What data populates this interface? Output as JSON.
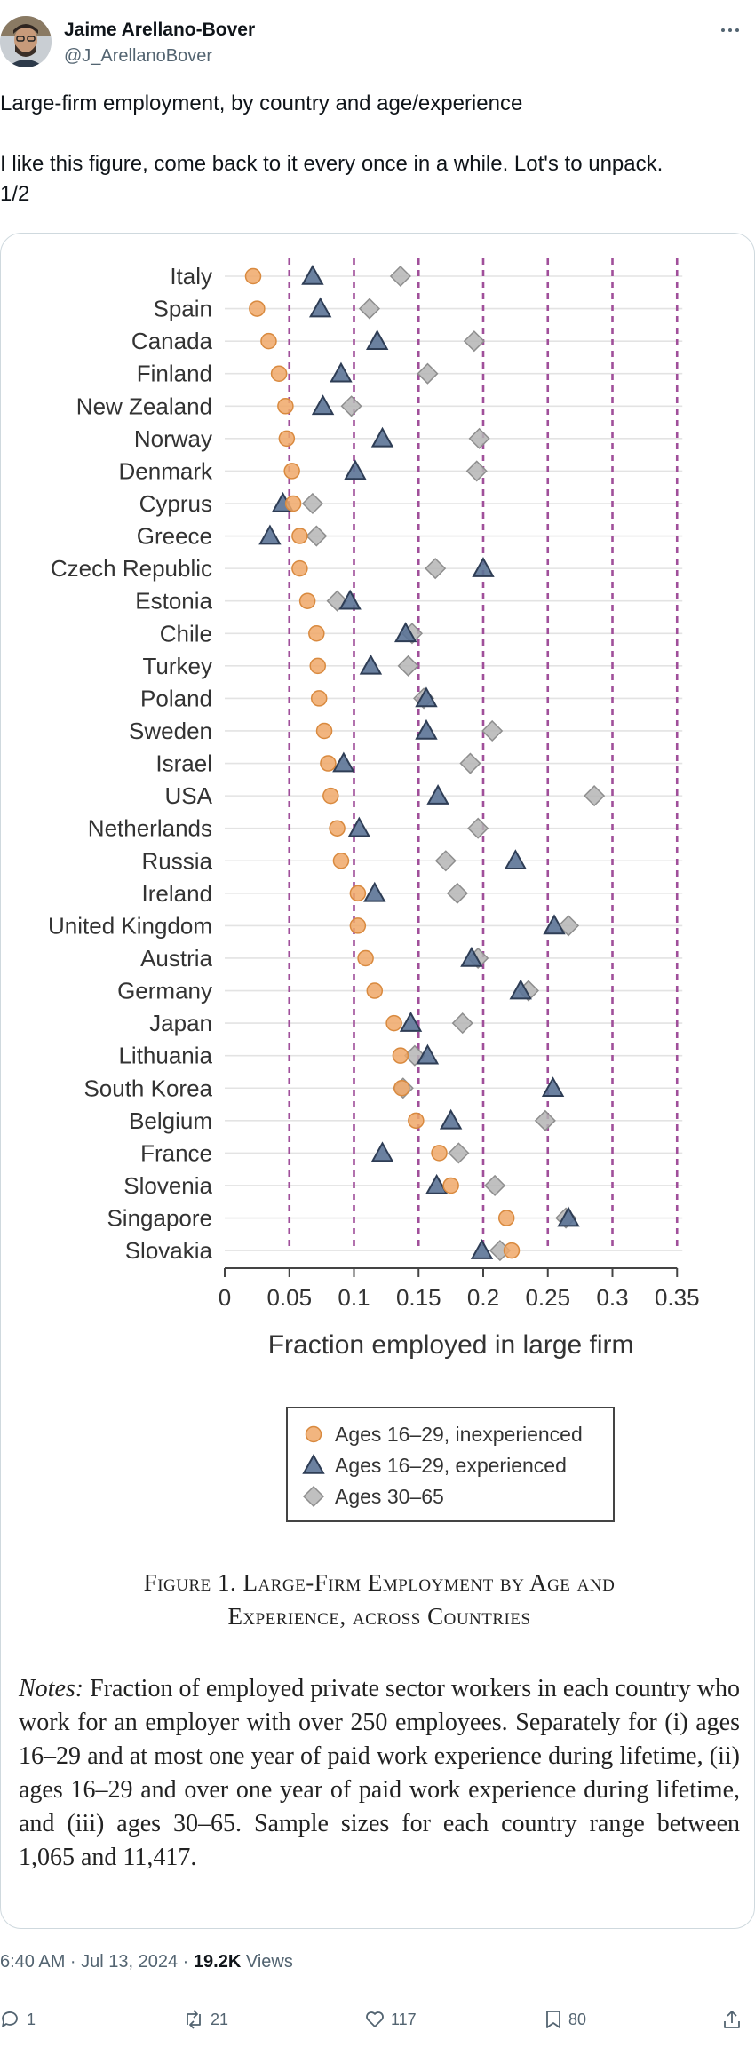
{
  "author": {
    "name": "Jaime Arellano-Bover",
    "handle": "@J_ArellanoBover"
  },
  "tweet": {
    "line1": "Large-firm employment, by country and age/experience",
    "line2": "I like this figure, come back to it every once in a while. Lot's to unpack.",
    "line3": "1/2"
  },
  "figure": {
    "title_line1": "Figure 1. Large-Firm Employment by Age and",
    "title_line2": "Experience, across Countries",
    "notes_label": "Notes:",
    "notes_text": " Fraction of employed private sector workers in each country who work for an employer with over 250 employees. Separately for (i) ages 16–29 and at most one year of paid work experience during lifetime, (ii) ages 16–29 and over one year of paid work experience during lifetime, and (iii) ages 30–65. Sample sizes for each country range between 1,065 and 11,417."
  },
  "chart_data": {
    "type": "scatter",
    "xlabel": "Fraction employed in large firm",
    "xlim": [
      0,
      0.35
    ],
    "xticks": [
      "0",
      "0.05",
      "0.1",
      "0.15",
      "0.2",
      "0.25",
      "0.3",
      "0.35"
    ],
    "legend_position": "bottom-center",
    "categories": [
      "Italy",
      "Spain",
      "Canada",
      "Finland",
      "New Zealand",
      "Norway",
      "Denmark",
      "Cyprus",
      "Greece",
      "Czech Republic",
      "Estonia",
      "Chile",
      "Turkey",
      "Poland",
      "Sweden",
      "Israel",
      "USA",
      "Netherlands",
      "Russia",
      "Ireland",
      "United Kingdom",
      "Austria",
      "Germany",
      "Japan",
      "Lithuania",
      "South Korea",
      "Belgium",
      "France",
      "Slovenia",
      "Singapore",
      "Slovakia"
    ],
    "series": [
      {
        "name": "Ages 16–29, inexperienced",
        "marker": "circle",
        "color": "#f0a868",
        "values": [
          0.022,
          0.025,
          0.034,
          0.042,
          0.047,
          0.048,
          0.052,
          0.053,
          0.058,
          0.058,
          0.064,
          0.071,
          0.072,
          0.073,
          0.077,
          0.08,
          0.082,
          0.087,
          0.09,
          0.103,
          0.103,
          0.109,
          0.116,
          0.131,
          0.136,
          0.137,
          0.148,
          0.166,
          0.175,
          0.218,
          0.222
        ]
      },
      {
        "name": "Ages 16–29, experienced",
        "marker": "triangle",
        "color": "#5b7396",
        "values": [
          0.068,
          0.074,
          0.118,
          0.09,
          0.076,
          0.122,
          0.101,
          0.045,
          0.035,
          0.2,
          0.097,
          0.14,
          0.113,
          0.156,
          0.156,
          0.092,
          0.165,
          0.104,
          0.225,
          0.116,
          0.255,
          0.191,
          0.229,
          0.144,
          0.157,
          0.254,
          0.175,
          0.122,
          0.164,
          0.266,
          0.199
        ]
      },
      {
        "name": "Ages 30–65",
        "marker": "diamond",
        "color": "#b5b5b5",
        "values": [
          0.136,
          0.112,
          0.193,
          0.157,
          0.098,
          0.197,
          0.195,
          0.068,
          0.071,
          0.163,
          0.087,
          0.145,
          0.142,
          0.154,
          0.207,
          0.19,
          0.286,
          0.196,
          0.171,
          0.18,
          0.266,
          0.196,
          0.235,
          0.184,
          0.147,
          0.138,
          0.248,
          0.181,
          0.209,
          0.264,
          0.213
        ]
      }
    ],
    "colors": {
      "inexperienced": "#f0a868",
      "experienced": "#5b7396",
      "older": "#b5b5b5",
      "vline": "#a04f9a"
    }
  },
  "meta": {
    "time": "6:40 AM · Jul 13, 2024 · ",
    "views_count": "19.2K",
    "views_label": " Views"
  },
  "actions": {
    "replies": "1",
    "reposts": "21",
    "likes": "117",
    "bookmarks": "80"
  },
  "icons": [
    "more-icon",
    "reply-icon",
    "repost-icon",
    "like-icon",
    "bookmark-icon",
    "share-icon"
  ]
}
